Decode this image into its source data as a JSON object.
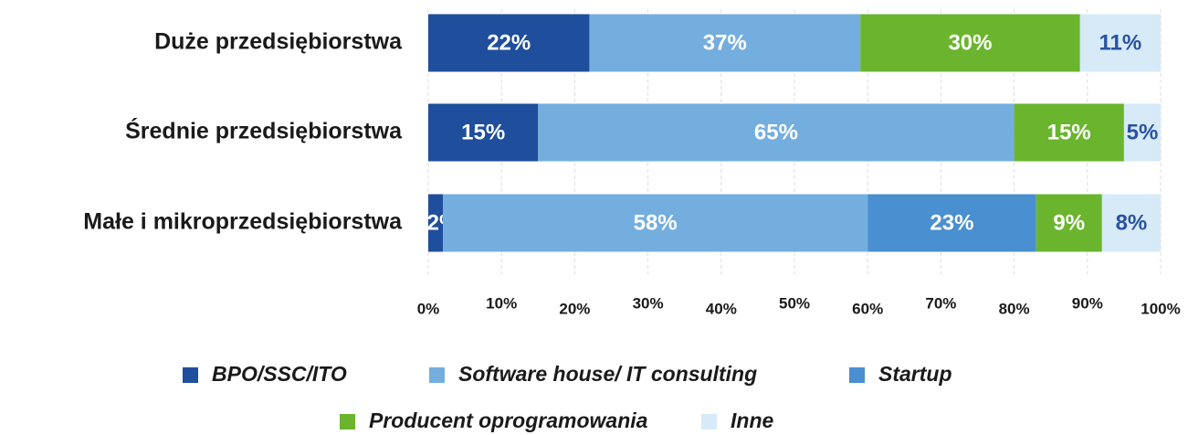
{
  "chart_data": {
    "type": "stacked-bar",
    "orientation": "horizontal",
    "categories": [
      "Duże przedsiębiorstwa",
      "Średnie przedsiębiorstwa",
      "Małe i mikroprzedsiębiorstwa"
    ],
    "series": [
      {
        "name": "BPO/SSC/ITO",
        "color": "#1f4e9c",
        "values": [
          22,
          15,
          2
        ],
        "value_labels": [
          "22%",
          "15%",
          "2%"
        ]
      },
      {
        "name": "Software house/ IT consulting",
        "color": "#74aedf",
        "values": [
          37,
          65,
          58
        ],
        "value_labels": [
          "37%",
          "65%",
          "58%"
        ]
      },
      {
        "name": "Startup",
        "color": "#4a8fcf",
        "values": [
          null,
          null,
          23
        ],
        "value_labels": [
          null,
          null,
          "23%"
        ]
      },
      {
        "name": "Producent oprogramowania",
        "color": "#6bb52e",
        "values": [
          30,
          15,
          9
        ],
        "value_labels": [
          "30%",
          "15%",
          "9%"
        ]
      },
      {
        "name": "Inne",
        "color": "#d6eaf8",
        "values": [
          11,
          5,
          8
        ],
        "value_labels": [
          "11%",
          "5%",
          "8%"
        ]
      }
    ],
    "xlim": [
      0,
      100
    ],
    "xticks": [
      {
        "value": 0,
        "label": "0%"
      },
      {
        "value": 10,
        "label": "10%"
      },
      {
        "value": 20,
        "label": "20%"
      },
      {
        "value": 30,
        "label": "30%"
      },
      {
        "value": 40,
        "label": "40%"
      },
      {
        "value": 50,
        "label": "50%"
      },
      {
        "value": 60,
        "label": "60%"
      },
      {
        "value": 70,
        "label": "70%"
      },
      {
        "value": 80,
        "label": "80%"
      },
      {
        "value": 90,
        "label": "90%"
      },
      {
        "value": 100,
        "label": "100%"
      }
    ],
    "grid": true,
    "legend": "bottom"
  }
}
